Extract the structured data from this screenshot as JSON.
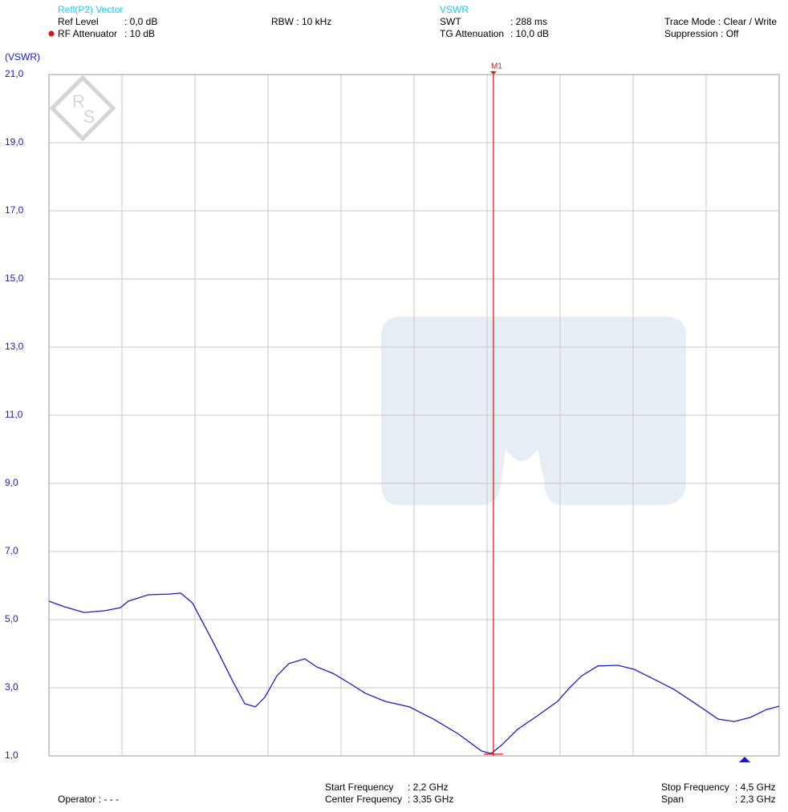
{
  "header": {
    "measurement": "Refl(P2) Vector",
    "ref_level": [
      "Ref Level",
      ": 0,0 dB"
    ],
    "rf_attenuator": [
      "RF Attenuator",
      ": 10 dB"
    ],
    "rbw": "RBW : 10 kHz",
    "display": "VSWR",
    "swt": [
      "SWT",
      ": 288 ms"
    ],
    "tg_attenuation": [
      "TG Attenuation",
      ": 10,0 dB"
    ],
    "trace_mode": "Trace Mode : Clear / Write",
    "suppression": "Suppression : Off"
  },
  "footer": {
    "operator": "Operator : - - -",
    "start": [
      "Start Frequency",
      ": 2,2 GHz"
    ],
    "center": [
      "Center Frequency",
      ": 3,35 GHz"
    ],
    "stop": [
      "Stop Frequency",
      ": 4,5 GHz"
    ],
    "span": [
      "Span",
      ": 2,3 GHz"
    ]
  },
  "chart_data": {
    "type": "line",
    "ylabel": "(VSWR)",
    "color": "#1a1acc",
    "grid": true,
    "xlim": [
      2.2,
      4.5
    ],
    "ylim": [
      1,
      21
    ],
    "xticks": [
      2.2,
      2.43,
      2.66,
      2.89,
      3.12,
      3.35,
      3.58,
      3.81,
      4.04,
      4.27,
      4.5
    ],
    "yticks": [
      {
        "value": 1,
        "label": "1,0"
      },
      {
        "value": 3,
        "label": "3,0"
      },
      {
        "value": 5,
        "label": "5,0"
      },
      {
        "value": 7,
        "label": "7,0"
      },
      {
        "value": 9,
        "label": "9,0"
      },
      {
        "value": 11,
        "label": "11,0"
      },
      {
        "value": 13,
        "label": "13,0"
      },
      {
        "value": 15,
        "label": "15,0"
      },
      {
        "value": 17,
        "label": "17,0"
      },
      {
        "value": 19,
        "label": "19,0"
      },
      {
        "value": 21,
        "label": "21,0"
      }
    ],
    "x": [
      2.2,
      2.248,
      2.311,
      2.374,
      2.425,
      2.45,
      2.513,
      2.577,
      2.615,
      2.652,
      2.716,
      2.779,
      2.817,
      2.85,
      2.88,
      2.918,
      2.956,
      3.006,
      3.044,
      3.095,
      3.145,
      3.196,
      3.259,
      3.335,
      3.411,
      3.487,
      3.563,
      3.593,
      3.625,
      3.676,
      3.739,
      3.802,
      3.84,
      3.878,
      3.929,
      3.992,
      4.043,
      4.093,
      4.169,
      4.245,
      4.308,
      4.359,
      4.409,
      4.46,
      4.5
    ],
    "values": [
      5.54,
      5.38,
      5.21,
      5.26,
      5.35,
      5.54,
      5.73,
      5.75,
      5.78,
      5.49,
      4.36,
      3.19,
      2.53,
      2.44,
      2.72,
      3.35,
      3.71,
      3.85,
      3.61,
      3.42,
      3.14,
      2.84,
      2.6,
      2.44,
      2.08,
      1.66,
      1.14,
      1.07,
      1.31,
      1.78,
      2.18,
      2.6,
      3.0,
      3.35,
      3.64,
      3.66,
      3.54,
      3.31,
      2.95,
      2.48,
      2.08,
      2.01,
      2.13,
      2.36,
      2.46
    ],
    "marker": {
      "label": "M1",
      "x": 3.6,
      "y": 1.05,
      "color": "#e01010"
    }
  }
}
